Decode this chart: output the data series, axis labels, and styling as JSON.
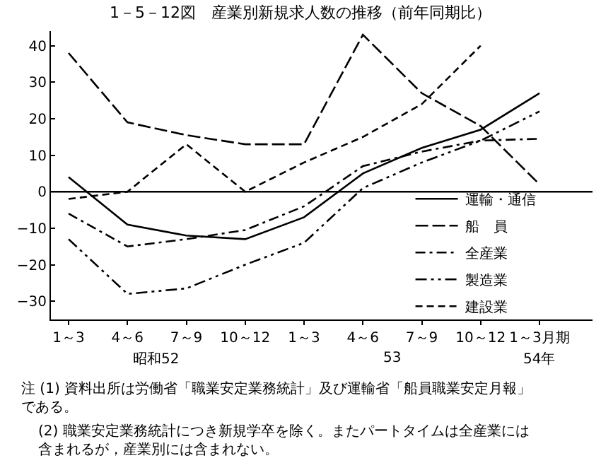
{
  "chart_data": {
    "type": "line",
    "title": "1－5－12図　産業別新規求人数の推移（前年同期比）",
    "categories": [
      "1～3",
      "4～6",
      "7～9",
      "10～12",
      "1～3",
      "4～6",
      "7～9",
      "10～12",
      "1～3月期"
    ],
    "series": [
      {
        "name": "運輸・通信",
        "color": "#000000",
        "line_style": "solid",
        "values": [
          4,
          -9,
          -12,
          -13,
          -7,
          5,
          12,
          17,
          27
        ]
      },
      {
        "name": "船　員",
        "color": "#000000",
        "line_style": "longdash",
        "values": [
          38,
          19,
          15.5,
          13,
          13,
          43,
          27,
          18,
          2
        ]
      },
      {
        "name": "全産業",
        "color": "#000000",
        "line_style": "dashdot",
        "values": [
          -6,
          -15,
          -13,
          -10.5,
          -4,
          7,
          11,
          14,
          14.5
        ]
      },
      {
        "name": "製造業",
        "color": "#000000",
        "line_style": "dashdotdot",
        "values": [
          -13,
          -28,
          -26.5,
          -20,
          -14,
          1,
          8,
          14,
          22
        ]
      },
      {
        "name": "建設業",
        "color": "#000000",
        "line_style": "dashed",
        "values": [
          -2,
          0,
          13,
          0,
          8,
          15,
          24,
          40,
          null
        ]
      }
    ],
    "ylim": [
      -35,
      44
    ],
    "yticks": [
      {
        "value": -30,
        "label": "−30"
      },
      {
        "value": -20,
        "label": "−20"
      },
      {
        "value": -10,
        "label": "−10"
      },
      0,
      10,
      20,
      30,
      40
    ],
    "ref_lines": [
      {
        "axis": "y",
        "value": 0,
        "label": null,
        "color": "#000000"
      }
    ],
    "grid": false,
    "legend": "bottom right",
    "marker": "none",
    "annotations": [
      "昭和52",
      "53",
      "54年",
      "注 (1) 資料出所は労働省「職業安定業務統計」及び運輸省「船員職業安定月報」である。",
      "(2) 職業安定業務統計につき新規学卒を除く。またパートタイムは全産業には含まれるが，産業別には含まれない。"
    ]
  }
}
